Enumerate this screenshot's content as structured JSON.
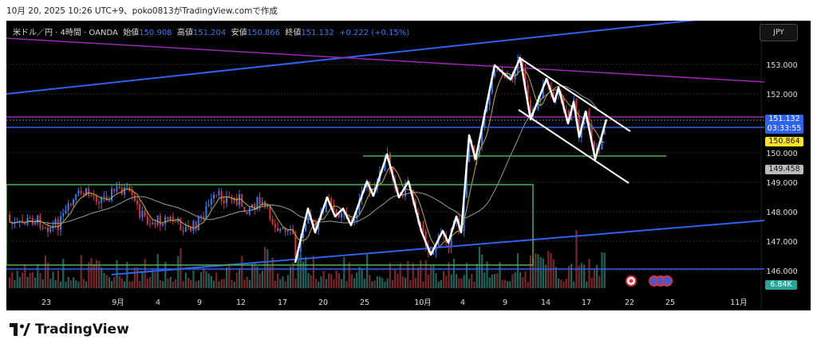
{
  "caption": "10月 20, 2025 10:26 UTC+9、poko0813がTradingView.comで作成",
  "legend": {
    "symbol": "米ドル／円 · 4時間 · OANDA",
    "open_label": "始値",
    "open": "150.908",
    "high_label": "高値",
    "high": "151.204",
    "low_label": "安値",
    "low": "150.866",
    "close_label": "終値",
    "close": "151.132",
    "change": "+0.222 (+0.15%)"
  },
  "currency_button": "JPY",
  "price_axis": [
    "153.000",
    "152.000",
    "150.000",
    "149.000",
    "148.000",
    "147.000",
    "146.000"
  ],
  "price_tags": {
    "last": "151.132",
    "countdown": "03:33:55",
    "ma_fast": "150.864",
    "ma_slow": "149.458",
    "volume": "6.84K"
  },
  "time_axis": [
    "23",
    "9月",
    "4",
    "9",
    "12",
    "17",
    "20",
    "25",
    "10月",
    "4",
    "9",
    "14",
    "17",
    "22",
    "25",
    "11月"
  ],
  "colors": {
    "up": "#2d7df6",
    "down": "#e0323c",
    "ma_fast": "#c9b017",
    "ma_slow": "#9a9a9a",
    "trend": "#2d62f0",
    "purple": "#9c27b0",
    "green": "#4caf50"
  },
  "footer": {
    "brand": "TradingView"
  }
}
